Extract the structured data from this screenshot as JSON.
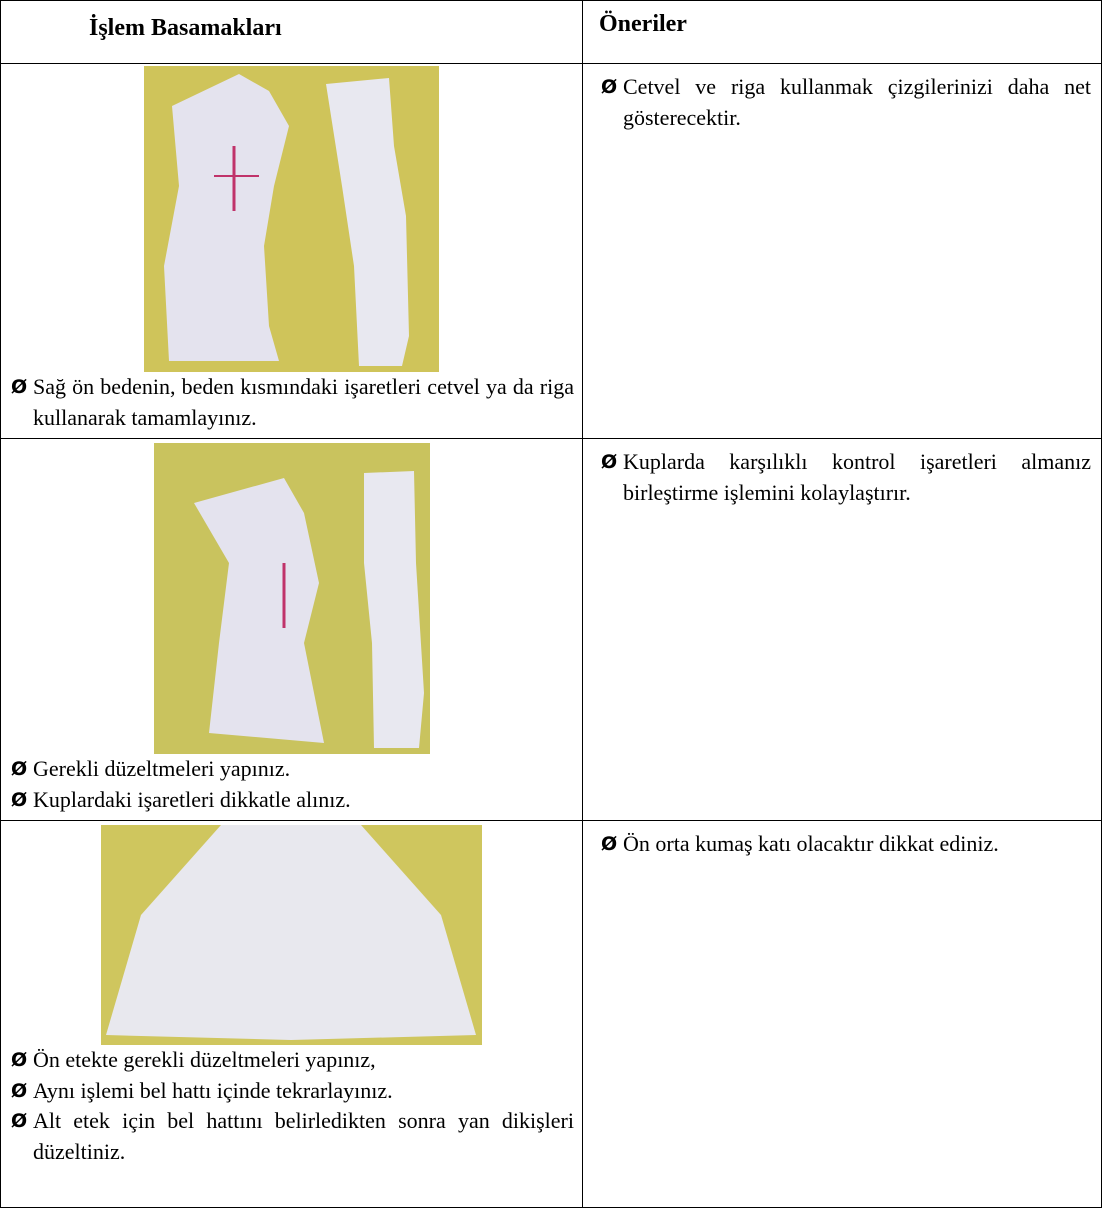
{
  "bullet": "Ø",
  "table": {
    "header": [
      "İşlem Basamakları",
      "Öneriler"
    ],
    "rows": [
      {
        "steps": [
          "Sağ ön bedenin, beden kısmındaki işaretleri cetvel ya da riga kullanarak tamamlayınız."
        ],
        "suggestions": [
          "Cetvel ve riga kullanmak çizgilerinizi daha net gösterecektir."
        ]
      },
      {
        "steps": [
          "Gerekli düzeltmeleri yapınız.",
          "Kuplardaki işaretleri dikkatle alınız."
        ],
        "suggestions": [
          "Kuplarda karşılıklı kontrol işaretleri almanız birleştirme işlemini kolaylaştırır."
        ]
      },
      {
        "steps": [
          "Ön etekte gerekli düzeltmeleri yapınız,",
          "Aynı işlemi bel hattı içinde tekrarlayınız.",
          "Alt etek için bel hattını belirledikten sonra yan dikişleri düzeltiniz."
        ],
        "suggestions": [
          "Ön orta kumaş katı olacaktır dikkat ediniz."
        ]
      }
    ]
  }
}
